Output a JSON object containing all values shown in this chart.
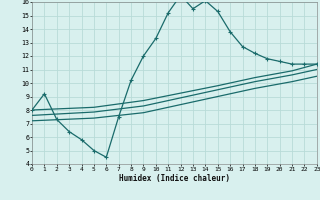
{
  "title": "",
  "xlabel": "Humidex (Indice chaleur)",
  "ylabel": "",
  "background_color": "#d8f0ee",
  "grid_color": "#b8dbd8",
  "line_color": "#1a6b6b",
  "xlim": [
    0,
    23
  ],
  "ylim": [
    4,
    16
  ],
  "xticks": [
    0,
    1,
    2,
    3,
    4,
    5,
    6,
    7,
    8,
    9,
    10,
    11,
    12,
    13,
    14,
    15,
    16,
    17,
    18,
    19,
    20,
    21,
    22,
    23
  ],
  "yticks": [
    4,
    5,
    6,
    7,
    8,
    9,
    10,
    11,
    12,
    13,
    14,
    15,
    16
  ],
  "line1_x": [
    0,
    1,
    2,
    3,
    4,
    5,
    6,
    7,
    8,
    9,
    10,
    11,
    12,
    13,
    14,
    15,
    16,
    17,
    18,
    19,
    20,
    21,
    22,
    23
  ],
  "line1_y": [
    8.0,
    9.2,
    7.3,
    6.4,
    5.8,
    5.0,
    4.5,
    7.5,
    10.2,
    12.0,
    13.3,
    15.2,
    16.5,
    15.5,
    16.1,
    15.3,
    13.8,
    12.7,
    12.2,
    11.8,
    11.6,
    11.4,
    11.4,
    11.4
  ],
  "line2_x": [
    0,
    5,
    9,
    15,
    18,
    21,
    23
  ],
  "line2_y": [
    8.0,
    8.2,
    8.7,
    9.8,
    10.4,
    10.9,
    11.4
  ],
  "line3_x": [
    0,
    5,
    9,
    15,
    18,
    21,
    23
  ],
  "line3_y": [
    7.6,
    7.85,
    8.3,
    9.5,
    10.1,
    10.6,
    11.0
  ],
  "line4_x": [
    0,
    5,
    9,
    15,
    18,
    21,
    23
  ],
  "line4_y": [
    7.2,
    7.4,
    7.8,
    9.0,
    9.6,
    10.1,
    10.5
  ],
  "markersize": 2.5,
  "linewidth": 0.9
}
